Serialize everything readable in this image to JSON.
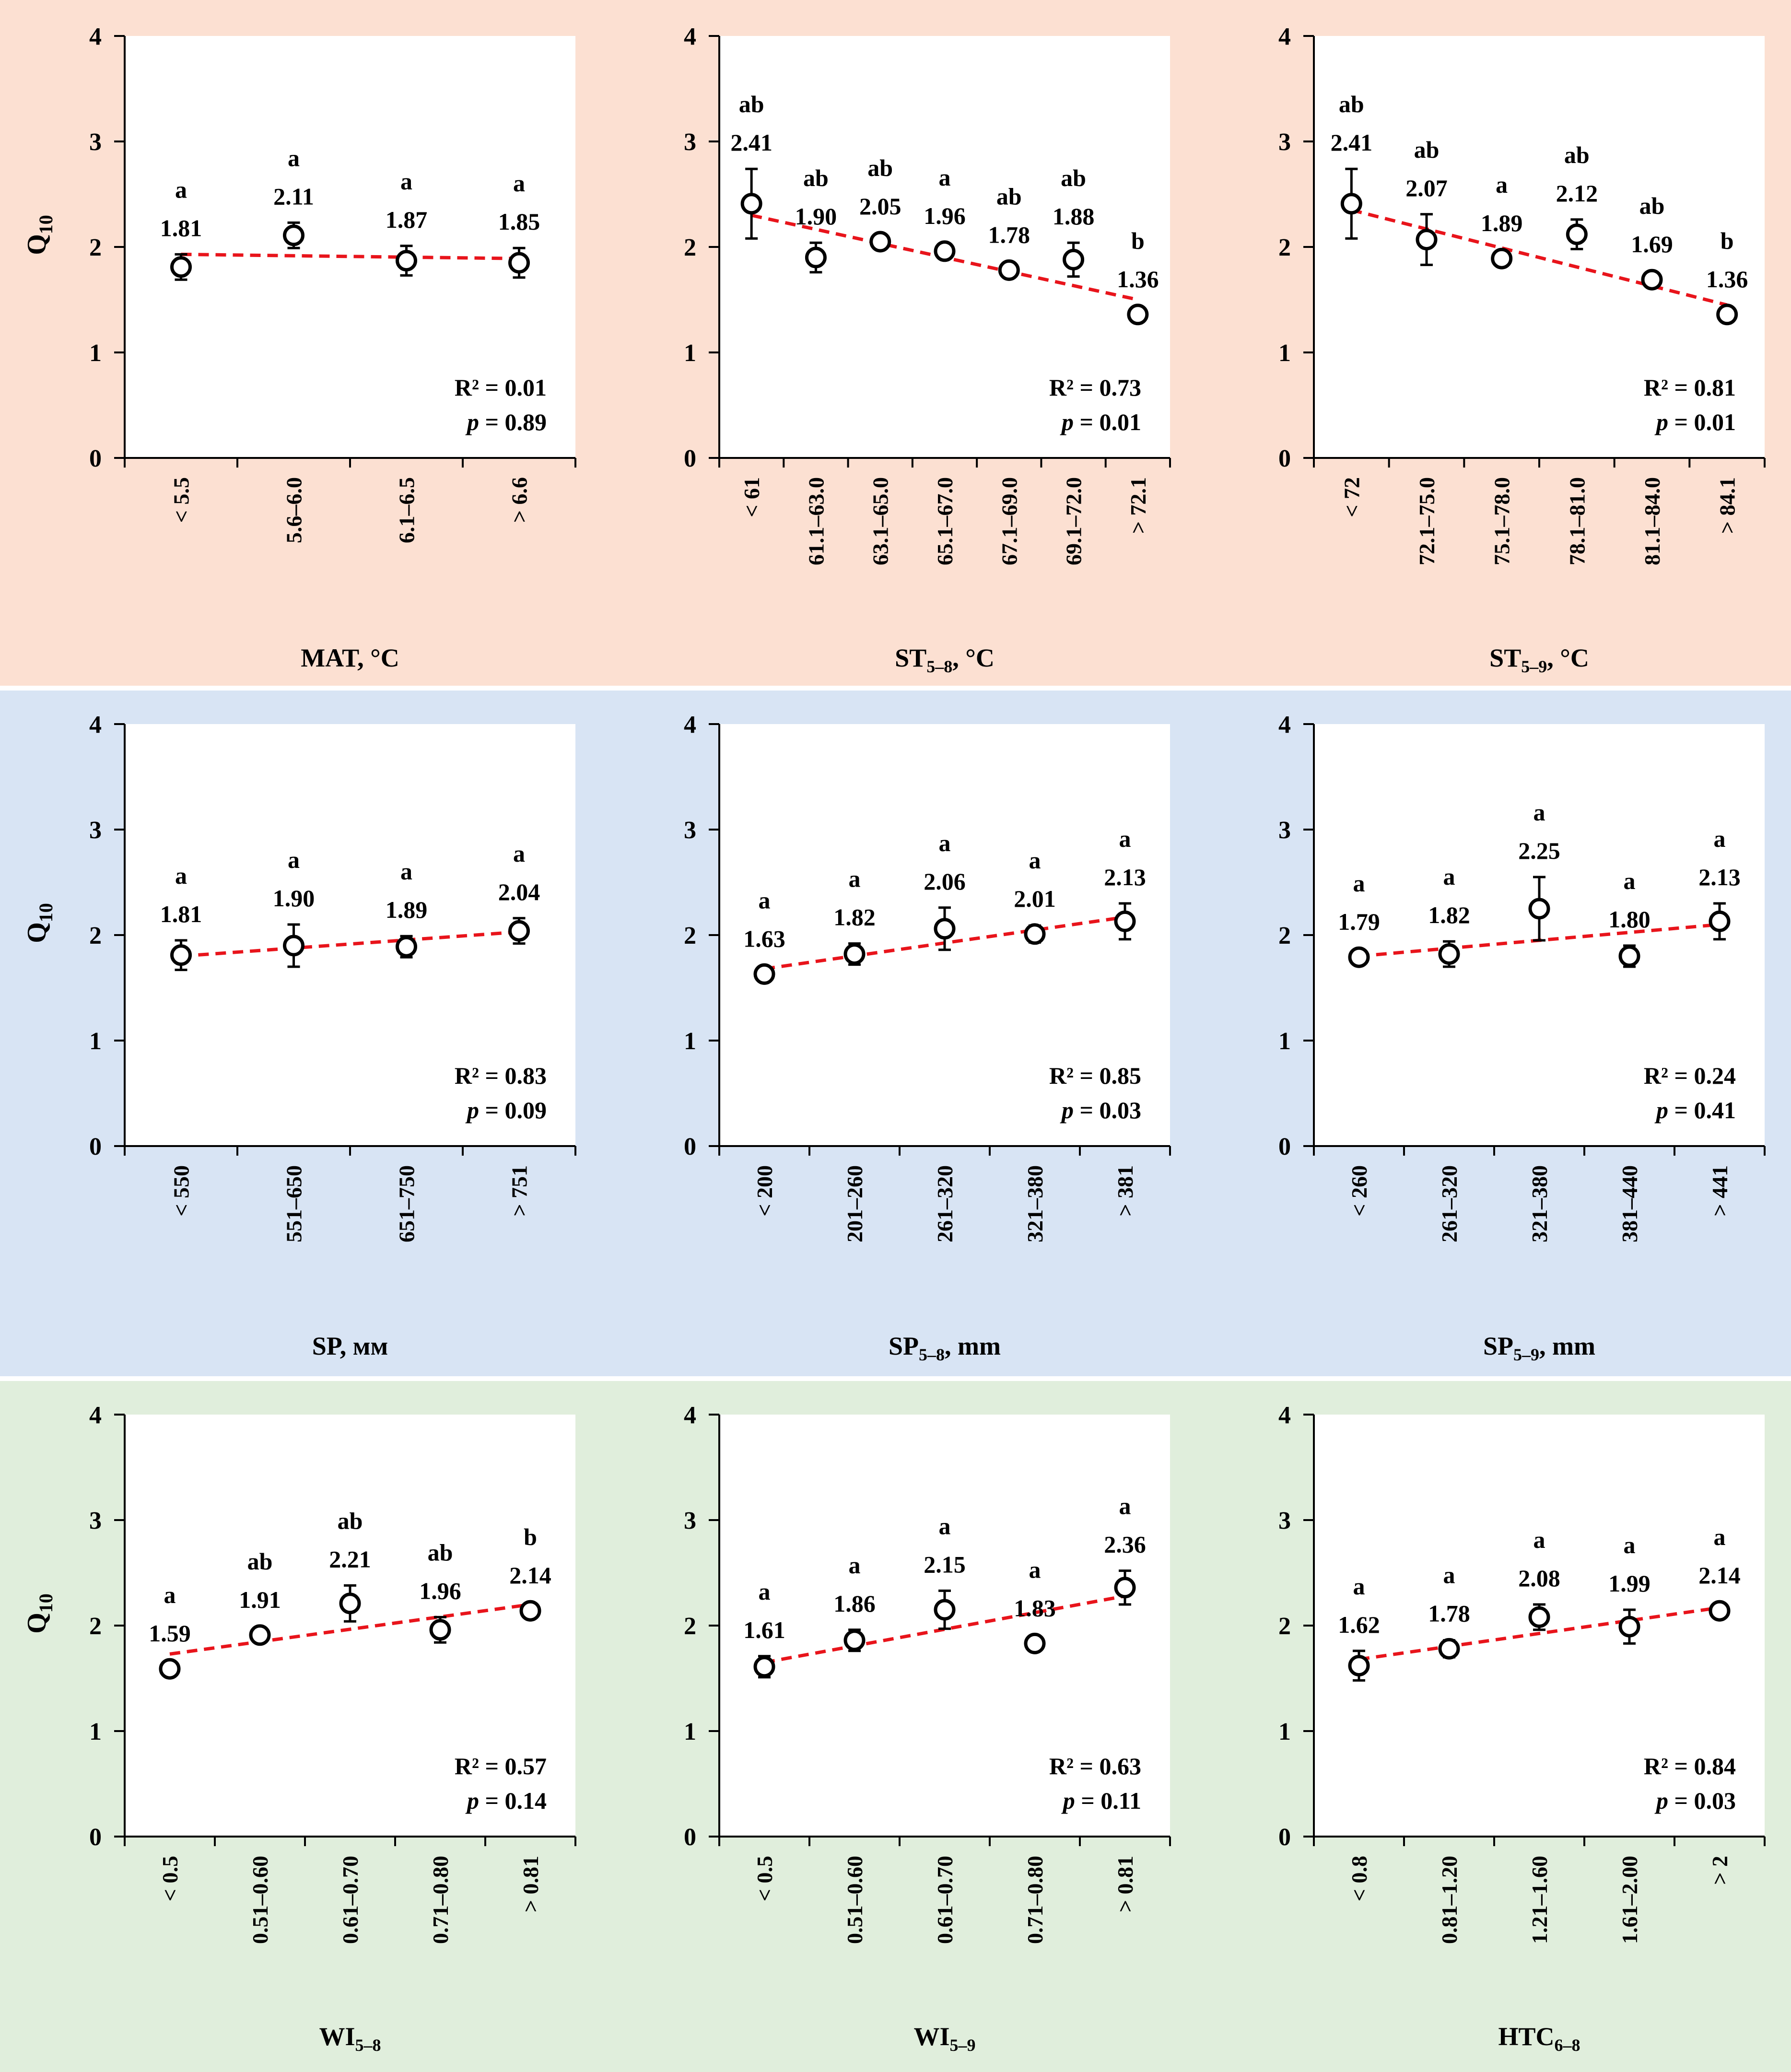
{
  "chart_data": [
    {
      "type": "scatter",
      "ylabel": "Q",
      "ylabel_sub": "10",
      "xlabel": "MAT, °C",
      "xlabel_sub": "",
      "xlabel_suffix": "",
      "ylim": [
        0,
        4
      ],
      "yticks": [
        "0",
        "1",
        "2",
        "3",
        "4"
      ],
      "categories": [
        "< 5.5",
        "5.6–6.0",
        "6.1–6.5",
        "> 6.6"
      ],
      "values": [
        1.81,
        2.11,
        1.87,
        1.85
      ],
      "value_labels": [
        "1.81",
        "2.11",
        "1.87",
        "1.85"
      ],
      "errors": [
        0.12,
        0.12,
        0.14,
        0.14
      ],
      "letters": [
        "a",
        "a",
        "a",
        "a"
      ],
      "trend": [
        1.93,
        1.89
      ],
      "r2_label": "R² = 0.01",
      "p_name": "p",
      "p_value": " = 0.89"
    },
    {
      "type": "scatter",
      "ylabel": "",
      "ylabel_sub": "",
      "xlabel": "ST",
      "xlabel_sub": "5–8",
      "xlabel_suffix": ", °C",
      "ylim": [
        0,
        4
      ],
      "yticks": [
        "0",
        "1",
        "2",
        "3",
        "4"
      ],
      "categories": [
        "< 61",
        "61.1–63.0",
        "63.1–65.0",
        "65.1–67.0",
        "67.1–69.0",
        "69.1–72.0",
        "> 72.1"
      ],
      "values": [
        2.41,
        1.9,
        2.05,
        1.96,
        1.78,
        1.88,
        1.36
      ],
      "value_labels": [
        "2.41",
        "1.90",
        "2.05",
        "1.96",
        "1.78",
        "1.88",
        "1.36"
      ],
      "errors": [
        0.33,
        0.14,
        0.03,
        0.04,
        0.03,
        0.16,
        0.04
      ],
      "letters": [
        "ab",
        "ab",
        "ab",
        "a",
        "ab",
        "ab",
        "b"
      ],
      "trend": [
        2.3,
        1.5
      ],
      "r2_label": "R² = 0.73",
      "p_name": "p",
      "p_value": " = 0.01"
    },
    {
      "type": "scatter",
      "ylabel": "",
      "ylabel_sub": "",
      "xlabel": "ST",
      "xlabel_sub": "5–9",
      "xlabel_suffix": ", °C",
      "ylim": [
        0,
        4
      ],
      "yticks": [
        "0",
        "1",
        "2",
        "3",
        "4"
      ],
      "categories": [
        "< 72",
        "72.1–75.0",
        "75.1–78.0",
        "78.1–81.0",
        "81.1–84.0",
        "> 84.1"
      ],
      "values": [
        2.41,
        2.07,
        1.89,
        2.12,
        1.69,
        1.36
      ],
      "value_labels": [
        "2.41",
        "2.07",
        "1.89",
        "2.12",
        "1.69",
        "1.36"
      ],
      "errors": [
        0.33,
        0.24,
        0.04,
        0.14,
        0.03,
        0.04
      ],
      "letters": [
        "ab",
        "ab",
        "a",
        "ab",
        "ab",
        "b"
      ],
      "trend": [
        2.35,
        1.45
      ],
      "r2_label": "R² = 0.81",
      "p_name": "p",
      "p_value": " = 0.01"
    },
    {
      "type": "scatter",
      "ylabel": "Q",
      "ylabel_sub": "10",
      "xlabel": "SP, мм",
      "xlabel_sub": "",
      "xlabel_suffix": "",
      "ylim": [
        0,
        4
      ],
      "yticks": [
        "0",
        "1",
        "2",
        "3",
        "4"
      ],
      "categories": [
        "< 550",
        "551–650",
        "651–750",
        "> 751"
      ],
      "values": [
        1.81,
        1.9,
        1.89,
        2.04
      ],
      "value_labels": [
        "1.81",
        "1.90",
        "1.89",
        "2.04"
      ],
      "errors": [
        0.14,
        0.2,
        0.1,
        0.12
      ],
      "letters": [
        "a",
        "a",
        "a",
        "a"
      ],
      "trend": [
        1.8,
        2.03
      ],
      "r2_label": "R² = 0.83",
      "p_name": "p",
      "p_value": " = 0.09"
    },
    {
      "type": "scatter",
      "ylabel": "",
      "ylabel_sub": "",
      "xlabel": "SP",
      "xlabel_sub": "5–8",
      "xlabel_suffix": ", mm",
      "ylim": [
        0,
        4
      ],
      "yticks": [
        "0",
        "1",
        "2",
        "3",
        "4"
      ],
      "categories": [
        "< 200",
        "201–260",
        "261–320",
        "321–380",
        "> 381"
      ],
      "values": [
        1.63,
        1.82,
        2.06,
        2.01,
        2.13
      ],
      "value_labels": [
        "1.63",
        "1.82",
        "2.06",
        "2.01",
        "2.13"
      ],
      "errors": [
        0.07,
        0.1,
        0.2,
        0.08,
        0.17
      ],
      "letters": [
        "a",
        "a",
        "a",
        "a",
        "a"
      ],
      "trend": [
        1.68,
        2.17
      ],
      "r2_label": "R² = 0.85",
      "p_name": "p",
      "p_value": " = 0.03"
    },
    {
      "type": "scatter",
      "ylabel": "",
      "ylabel_sub": "",
      "xlabel": "SP",
      "xlabel_sub": "5–9",
      "xlabel_suffix": ", mm",
      "ylim": [
        0,
        4
      ],
      "yticks": [
        "0",
        "1",
        "2",
        "3",
        "4"
      ],
      "categories": [
        "< 260",
        "261–320",
        "321–380",
        "381–440",
        "> 441"
      ],
      "values": [
        1.79,
        1.82,
        2.25,
        1.8,
        2.13
      ],
      "value_labels": [
        "1.79",
        "1.82",
        "2.25",
        "1.80",
        "2.13"
      ],
      "errors": [
        0.04,
        0.12,
        0.3,
        0.1,
        0.17
      ],
      "letters": [
        "a",
        "a",
        "a",
        "a",
        "a"
      ],
      "trend": [
        1.8,
        2.1
      ],
      "r2_label": "R² = 0.24",
      "p_name": "p",
      "p_value": " = 0.41"
    },
    {
      "type": "scatter",
      "ylabel": "Q",
      "ylabel_sub": "10",
      "xlabel": "WI",
      "xlabel_sub": "5–8",
      "xlabel_suffix": "",
      "ylim": [
        0,
        4
      ],
      "yticks": [
        "0",
        "1",
        "2",
        "3",
        "4"
      ],
      "categories": [
        "< 0.5",
        "0.51–0.60",
        "0.61–0.70",
        "0.71–0.80",
        "> 0.81"
      ],
      "values": [
        1.59,
        1.91,
        2.21,
        1.96,
        2.14
      ],
      "value_labels": [
        "1.59",
        "1.91",
        "2.21",
        "1.96",
        "2.14"
      ],
      "errors": [
        0.04,
        0.06,
        0.17,
        0.12,
        0.03
      ],
      "letters": [
        "a",
        "ab",
        "ab",
        "ab",
        "b"
      ],
      "trend": [
        1.73,
        2.2
      ],
      "r2_label": "R² = 0.57",
      "p_name": "p",
      "p_value": " = 0.14"
    },
    {
      "type": "scatter",
      "ylabel": "",
      "ylabel_sub": "",
      "xlabel": "WI",
      "xlabel_sub": "5–9",
      "xlabel_suffix": "",
      "ylim": [
        0,
        4
      ],
      "yticks": [
        "0",
        "1",
        "2",
        "3",
        "4"
      ],
      "categories": [
        "< 0.5",
        "0.51–0.60",
        "0.61–0.70",
        "0.71–0.80",
        "> 0.81"
      ],
      "values": [
        1.61,
        1.86,
        2.15,
        1.83,
        2.36
      ],
      "value_labels": [
        "1.61",
        "1.86",
        "2.15",
        "1.83",
        "2.36"
      ],
      "errors": [
        0.1,
        0.1,
        0.18,
        0.04,
        0.16
      ],
      "letters": [
        "a",
        "a",
        "a",
        "a",
        "a"
      ],
      "trend": [
        1.65,
        2.28
      ],
      "r2_label": "R² = 0.63",
      "p_name": "p",
      "p_value": " = 0.11"
    },
    {
      "type": "scatter",
      "ylabel": "",
      "ylabel_sub": "",
      "xlabel": "HTC",
      "xlabel_sub": "6–8",
      "xlabel_suffix": "",
      "ylim": [
        0,
        4
      ],
      "yticks": [
        "0",
        "1",
        "2",
        "3",
        "4"
      ],
      "categories": [
        "< 0.8",
        "0.81–1.20",
        "1.21–1.60",
        "1.61–2.00",
        "> 2"
      ],
      "values": [
        1.62,
        1.78,
        2.08,
        1.99,
        2.14
      ],
      "value_labels": [
        "1.62",
        "1.78",
        "2.08",
        "1.99",
        "2.14"
      ],
      "errors": [
        0.14,
        0.08,
        0.12,
        0.16,
        0.03
      ],
      "letters": [
        "a",
        "a",
        "a",
        "a",
        "a"
      ],
      "trend": [
        1.68,
        2.17
      ],
      "r2_label": "R² = 0.84",
      "p_name": "p",
      "p_value": " = 0.03"
    }
  ],
  "colors": {
    "band_1": "#fce0d2",
    "band_2": "#d8e4f4",
    "band_3": "#e0eedc",
    "trendline": "#e8141b",
    "marker": "#000000"
  }
}
